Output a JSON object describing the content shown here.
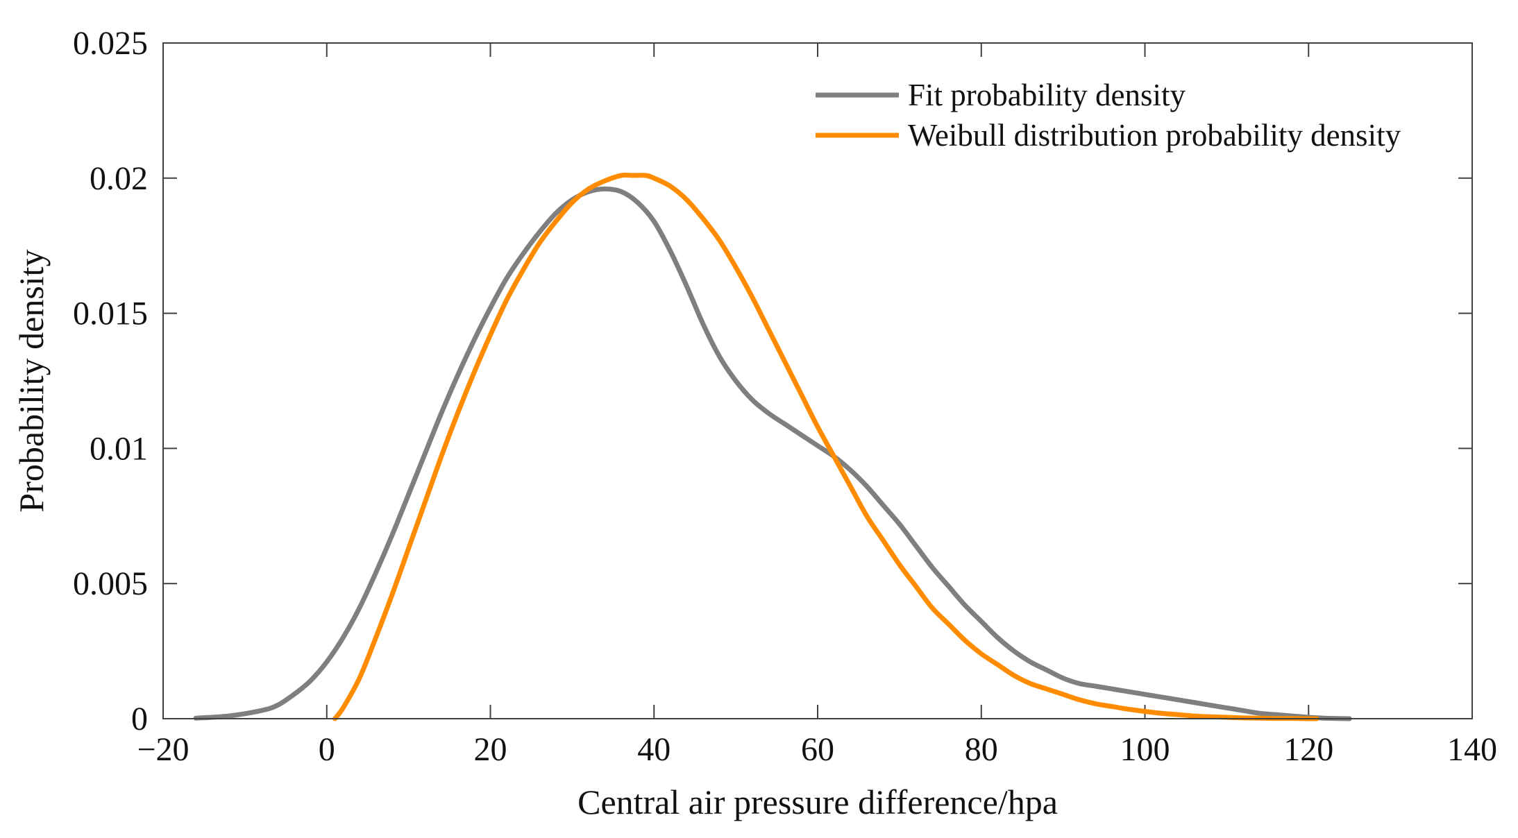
{
  "chart_data": {
    "type": "line",
    "title": "",
    "xlabel": "Central air pressure difference/hpa",
    "ylabel": "Probability density",
    "xlim": [
      -20,
      140
    ],
    "ylim": [
      0,
      0.025
    ],
    "grid": false,
    "legend_position": "top-right",
    "x_ticks": [
      -20,
      0,
      20,
      40,
      60,
      80,
      100,
      120,
      140
    ],
    "x_tick_labels": [
      "−20",
      "0",
      "20",
      "40",
      "60",
      "80",
      "100",
      "120",
      "140"
    ],
    "y_ticks": [
      0,
      0.005,
      0.01,
      0.015,
      0.02,
      0.025
    ],
    "y_tick_labels": [
      "0",
      "0.005",
      "0.01",
      "0.015",
      "0.02",
      "0.025"
    ],
    "series": [
      {
        "name": "Fit probability density",
        "color": "#7f7f7f",
        "x": [
          -16,
          -12,
          -8,
          -6,
          -4,
          -2,
          0,
          2,
          4,
          6,
          8,
          10,
          12,
          14,
          16,
          18,
          20,
          22,
          24,
          26,
          28,
          30,
          32,
          34,
          36,
          38,
          40,
          42,
          44,
          46,
          48,
          50,
          52,
          54,
          56,
          58,
          60,
          62,
          64,
          66,
          68,
          70,
          72,
          74,
          76,
          78,
          80,
          82,
          84,
          86,
          88,
          90,
          92,
          94,
          96,
          98,
          100,
          102,
          104,
          106,
          108,
          110,
          112,
          114,
          116,
          118,
          120,
          122,
          125
        ],
        "y": [
          2e-05,
          0.0001,
          0.0003,
          0.0005,
          0.0009,
          0.0014,
          0.0021,
          0.003,
          0.0041,
          0.0054,
          0.0068,
          0.0083,
          0.0098,
          0.0113,
          0.0127,
          0.014,
          0.0152,
          0.0163,
          0.0172,
          0.018,
          0.0187,
          0.0192,
          0.0195,
          0.0196,
          0.0195,
          0.0191,
          0.0184,
          0.0173,
          0.016,
          0.0146,
          0.0134,
          0.0125,
          0.0118,
          0.0113,
          0.0109,
          0.0105,
          0.0101,
          0.0097,
          0.0092,
          0.0086,
          0.0079,
          0.0072,
          0.0064,
          0.0056,
          0.0049,
          0.0042,
          0.0036,
          0.003,
          0.0025,
          0.0021,
          0.0018,
          0.0015,
          0.0013,
          0.0012,
          0.0011,
          0.001,
          0.0009,
          0.0008,
          0.0007,
          0.0006,
          0.0005,
          0.0004,
          0.0003,
          0.0002,
          0.00015,
          0.0001,
          5e-05,
          2e-05,
          0.0
        ]
      },
      {
        "name": "Weibull distribution probability density",
        "color": "#ff8c00",
        "x": [
          1,
          2,
          4,
          6,
          8,
          10,
          12,
          14,
          16,
          18,
          20,
          22,
          24,
          26,
          28,
          30,
          32,
          34,
          36,
          37.5,
          39,
          40,
          42,
          44,
          46,
          48,
          50,
          52,
          54,
          56,
          58,
          60,
          62,
          64,
          66,
          68,
          70,
          72,
          74,
          76,
          78,
          80,
          82,
          84,
          86,
          88,
          90,
          92,
          94,
          96,
          98,
          100,
          102,
          104,
          106,
          108,
          110,
          112,
          114,
          116,
          118,
          120,
          121
        ],
        "y": [
          0.0,
          0.0004,
          0.0015,
          0.003,
          0.0046,
          0.0063,
          0.008,
          0.0097,
          0.0113,
          0.0128,
          0.0142,
          0.0155,
          0.0166,
          0.0176,
          0.0184,
          0.0191,
          0.0196,
          0.0199,
          0.0201,
          0.0201,
          0.0201,
          0.02,
          0.0197,
          0.0192,
          0.0185,
          0.0177,
          0.0167,
          0.0156,
          0.0144,
          0.0132,
          0.012,
          0.0108,
          0.0097,
          0.0086,
          0.0075,
          0.0066,
          0.0057,
          0.0049,
          0.0041,
          0.0035,
          0.0029,
          0.0024,
          0.002,
          0.0016,
          0.0013,
          0.0011,
          0.0009,
          0.0007,
          0.00055,
          0.00045,
          0.00035,
          0.00027,
          0.0002,
          0.00015,
          0.0001,
          7e-05,
          5e-05,
          3e-05,
          2e-05,
          1e-05,
          1e-05,
          0.0,
          0.0
        ]
      }
    ]
  }
}
